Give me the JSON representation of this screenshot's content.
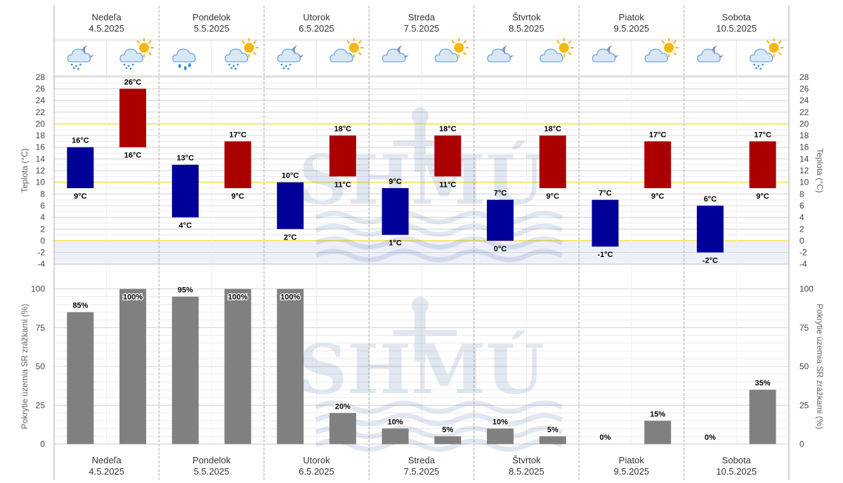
{
  "days": [
    {
      "name": "Nedeľa",
      "date": "4.5.2025"
    },
    {
      "name": "Pondelok",
      "date": "5.5.2025"
    },
    {
      "name": "Utorok",
      "date": "6.5.2025"
    },
    {
      "name": "Streda",
      "date": "7.5.2025"
    },
    {
      "name": "Štvrtok",
      "date": "8.5.2025"
    },
    {
      "name": "Piatok",
      "date": "9.5.2025"
    },
    {
      "name": "Sobota",
      "date": "10.5.2025"
    }
  ],
  "icons": [
    "night-rain-cloud-icon",
    "day-rain-sun-cloud-icon",
    "rain-cloud-icon",
    "day-rain-sun-cloud-icon",
    "night-rain-cloud-icon",
    "sun-cloud-icon",
    "night-cloud-icon",
    "sun-cloud-icon",
    "night-cloud-icon",
    "sun-cloud-icon",
    "night-cloud-icon",
    "sun-cloud-icon",
    "night-cloud-moon-icon",
    "day-rain-sun-cloud-icon"
  ],
  "watermark": "SHMÚ",
  "colors": {
    "night_bar": "#000099",
    "day_bar": "#aa0000",
    "precip_bar": "#808080",
    "highlight_line": "#f5e66a",
    "below_zero": "#eef0fb"
  },
  "chart_data": [
    {
      "type": "bar",
      "title": "",
      "ylabel": "Teplota (°C)",
      "ylim": [
        -4,
        28
      ],
      "yticks": [
        -4,
        -2,
        0,
        2,
        4,
        6,
        8,
        10,
        12,
        14,
        16,
        18,
        20,
        22,
        24,
        26,
        28
      ],
      "highlight_lines": [
        0,
        10,
        20
      ],
      "series": [
        {
          "part": "night",
          "low": [
            9,
            4,
            2,
            1,
            0,
            -1,
            -2
          ],
          "high": [
            16,
            13,
            10,
            9,
            7,
            7,
            6
          ]
        },
        {
          "part": "day",
          "low": [
            16,
            9,
            11,
            11,
            9,
            9,
            9
          ],
          "high": [
            26,
            17,
            18,
            18,
            18,
            17,
            17
          ]
        }
      ]
    },
    {
      "type": "bar",
      "title": "",
      "ylabel": "Pokrytie územia SR zrážkami (%)",
      "ylim": [
        0,
        100
      ],
      "yticks": [
        0,
        25,
        50,
        75,
        100
      ],
      "series": [
        {
          "part": "night",
          "values": [
            85,
            95,
            100,
            10,
            10,
            0,
            0
          ]
        },
        {
          "part": "day",
          "values": [
            100,
            100,
            20,
            5,
            5,
            15,
            35
          ]
        }
      ]
    }
  ]
}
